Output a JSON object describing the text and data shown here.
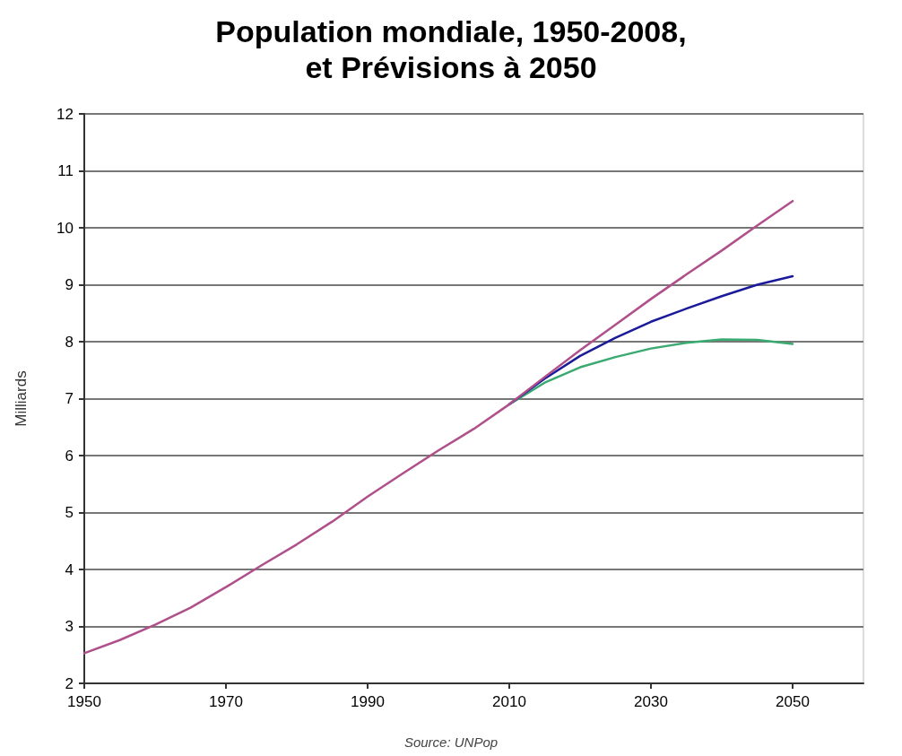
{
  "chart_data": {
    "type": "line",
    "title": "Population mondiale, 1950-2008,\net Prévisions à 2050",
    "ylabel": "Milliards",
    "annotations": [
      "Source: UNPop"
    ],
    "xlim": [
      1950,
      2060
    ],
    "xticks": [
      1950,
      1970,
      1990,
      2010,
      2030,
      2050
    ],
    "ylim": [
      2,
      12
    ],
    "yticks": [
      2,
      3,
      4,
      5,
      6,
      7,
      8,
      9,
      10,
      11,
      12
    ],
    "grid": "y",
    "marker": "none",
    "line_style": "solid",
    "series": [
      {
        "color": "#3aaa70",
        "x": [
          2010,
          2015,
          2020,
          2025,
          2030,
          2035,
          2040,
          2045,
          2050
        ],
        "values": [
          6.9,
          7.28,
          7.55,
          7.73,
          7.88,
          7.98,
          8.04,
          8.03,
          7.96
        ]
      },
      {
        "color": "#1a1a9a",
        "x": [
          2010,
          2015,
          2020,
          2025,
          2030,
          2035,
          2040,
          2045,
          2050
        ],
        "values": [
          6.9,
          7.35,
          7.75,
          8.07,
          8.35,
          8.58,
          8.8,
          9.0,
          9.15
        ]
      },
      {
        "color": "#b0508a",
        "x": [
          1950,
          1955,
          1960,
          1965,
          1970,
          1975,
          1980,
          1985,
          1990,
          1995,
          2000,
          2005,
          2010,
          2015,
          2020,
          2025,
          2030,
          2035,
          2040,
          2045,
          2050
        ],
        "values": [
          2.53,
          2.76,
          3.03,
          3.33,
          3.69,
          4.07,
          4.44,
          4.84,
          5.28,
          5.69,
          6.09,
          6.47,
          6.9,
          7.38,
          7.85,
          8.3,
          8.75,
          9.18,
          9.6,
          10.04,
          10.47
        ]
      }
    ]
  }
}
